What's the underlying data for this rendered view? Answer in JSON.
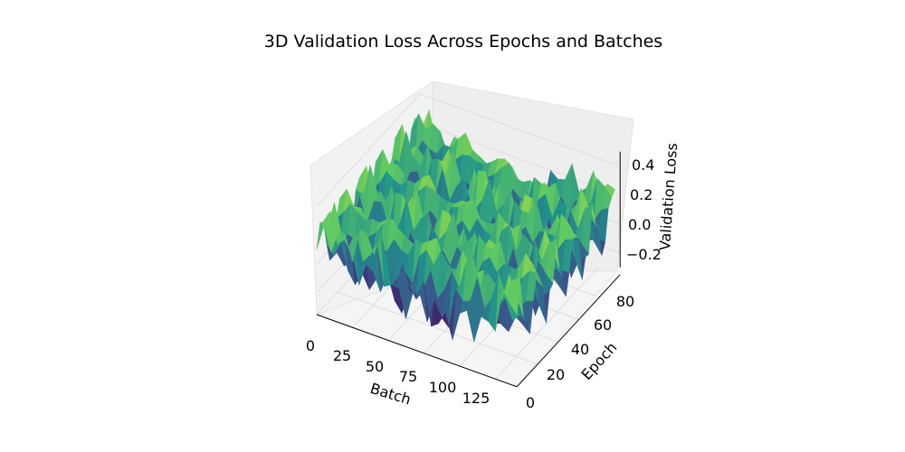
{
  "chart_data": {
    "type": "surface3d",
    "title": "3D Validation Loss Across Epochs and Batches",
    "xlabel": "Batch",
    "ylabel": "Epoch",
    "zlabel": "Validation Loss",
    "x_ticks": [
      "0",
      "25",
      "50",
      "75",
      "100",
      "125"
    ],
    "y_ticks": [
      "0",
      "20",
      "40",
      "60",
      "80"
    ],
    "z_ticks": [
      "−0.2",
      "0.0",
      "0.2",
      "0.4"
    ],
    "xlim": [
      0,
      140
    ],
    "ylim": [
      0,
      100
    ],
    "zlim": [
      -0.35,
      0.55
    ],
    "grid": true,
    "colormap": [
      "#440154",
      "#3b528b",
      "#21918c",
      "#5ec962",
      "#fde725"
    ]
  }
}
